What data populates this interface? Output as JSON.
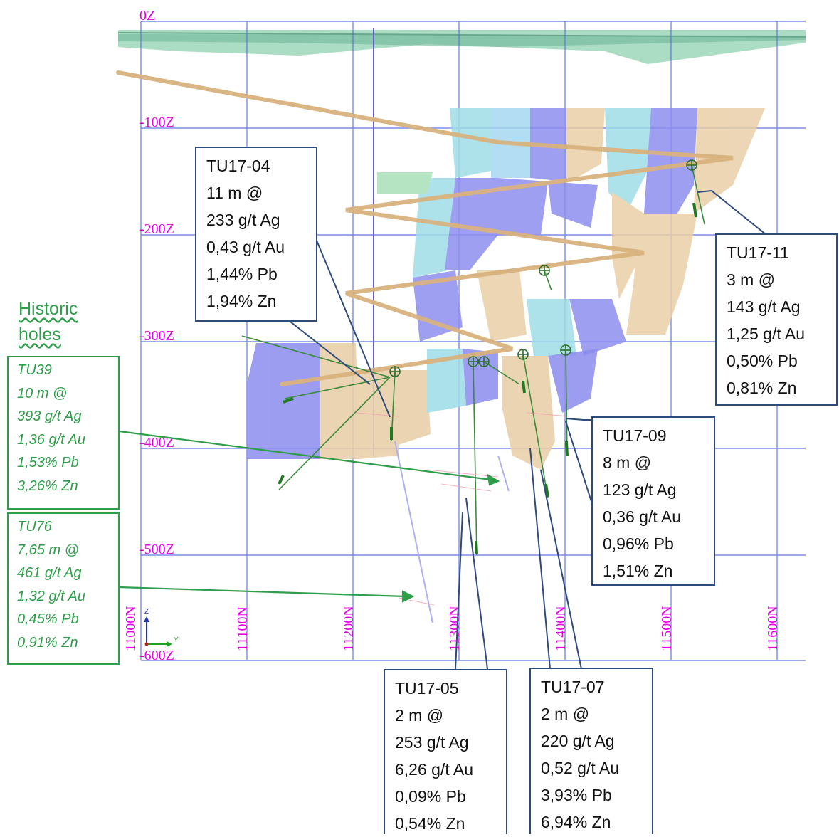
{
  "elevation_labels": [
    "0Z",
    "-100Z",
    "-200Z",
    "-300Z",
    "-400Z",
    "-500Z",
    "-600Z"
  ],
  "northing_labels": [
    "11000N",
    "11100N",
    "11200N",
    "11300N",
    "11400N",
    "11500N",
    "11600N"
  ],
  "axis_triad": {
    "z_label": "Z",
    "y_label": "Y"
  },
  "historic_title": [
    "Historic",
    "holes"
  ],
  "historic_holes": [
    {
      "lines": [
        "TU39",
        "10 m @",
        "393 g/t Ag",
        "1,36 g/t Au",
        "1,53% Pb",
        "3,26% Zn"
      ]
    },
    {
      "lines": [
        "TU76",
        "7,65 m @",
        "461 g/t Ag",
        "1,32 g/t Au",
        "0,45% Pb",
        "0,91% Zn"
      ]
    }
  ],
  "callouts": [
    {
      "id": "TU17-04",
      "lines": [
        "TU17-04",
        "11 m @",
        "233 g/t Ag",
        "0,43 g/t Au",
        "1,44% Pb",
        "1,94% Zn"
      ]
    },
    {
      "id": "TU17-11",
      "lines": [
        "TU17-11",
        "3 m @",
        "143 g/t Ag",
        "1,25 g/t Au",
        "0,50% Pb",
        "0,81% Zn"
      ]
    },
    {
      "id": "TU17-09",
      "lines": [
        "TU17-09",
        "8 m @",
        "123 g/t Ag",
        "0,36 g/t Au",
        "0,96% Pb",
        "1,51% Zn"
      ]
    },
    {
      "id": "TU17-05",
      "lines": [
        "TU17-05",
        "2 m @",
        "253 g/t Ag",
        "6,26 g/t Au",
        "0,09% Pb",
        "0,54% Zn"
      ]
    },
    {
      "id": "TU17-07",
      "lines": [
        "TU17-07",
        "2 m @",
        "220 g/t Ag",
        "0,52 g/t Au",
        "3,93% Pb",
        "6,94% Zn"
      ]
    }
  ],
  "colors": {
    "grid": "#5a6fe0",
    "labels": "#e600e6",
    "callout_border": "#2f4b7c",
    "historic": "#2e9e4a",
    "ramp": "#d8b27e",
    "block_tan": "#e9cfa8",
    "block_purple": "#8f8ff0",
    "block_cyan": "#9fdde8",
    "surface": "#8fd0b0"
  }
}
